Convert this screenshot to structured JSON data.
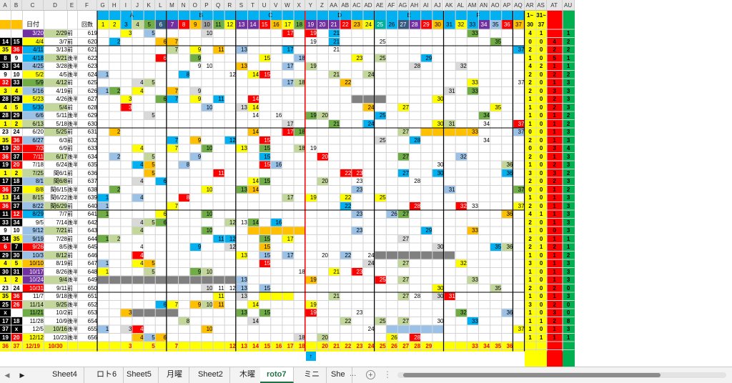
{
  "colors": {
    "red": "#ff0000",
    "yellow": "#ffff00",
    "orange": "#ffc000",
    "green": "#70ad47",
    "lblue": "#9bc2e6",
    "blue": "#00b0f0",
    "gray": "#808080",
    "lgray": "#d9d9d9",
    "purple": "#7030a0",
    "olive": "#c4d79b",
    "black": "#000000",
    "teal": "#00b0a0",
    "darkgray": "#555555",
    "pink": "#ff99cc",
    "lpurple": "#b4a7d6"
  },
  "column_letters": [
    "A",
    "B",
    "C",
    "D",
    "E",
    "F",
    "G",
    "H",
    "I",
    "J",
    "K",
    "L",
    "M",
    "N",
    "O",
    "P",
    "Q",
    "R",
    "S",
    "T",
    "U",
    "V",
    "W",
    "X",
    "Y",
    "Z",
    "AA",
    "AB",
    "AC",
    "AD",
    "AE",
    "AF",
    "AG",
    "AH",
    "AI",
    "AJ",
    "AK",
    "AL",
    "AM",
    "AN",
    "AO",
    "AP",
    "AQ",
    "AR",
    "AS",
    "AT",
    "AU"
  ],
  "group_labels": [
    "A",
    "B",
    "C",
    "D",
    "E",
    "F"
  ],
  "header": {
    "date_label": "日付",
    "first_date": "3/20",
    "first_prev": "2/29",
    "first_half": "前",
    "round_label": "回数",
    "num_headers": [
      "1",
      "2",
      "3",
      "4",
      "5",
      "6",
      "7",
      "8",
      "9",
      "10",
      "11",
      "12",
      "13",
      "14",
      "15",
      "16",
      "17",
      "18",
      "19",
      "20",
      "21",
      "22",
      "23",
      "24",
      "25",
      "26",
      "27",
      "28",
      "29",
      "30",
      "31",
      "32",
      "33",
      "34",
      "35",
      "36",
      "37"
    ],
    "right_heads": [
      "1~",
      "31~"
    ],
    "right_vals": [
      "30",
      "37"
    ]
  },
  "rows": [
    {
      "a": "",
      "b": "",
      "c": "3/20",
      "d": "2/29",
      "e": "前",
      "f": "619",
      "ar": "4",
      "as": "1",
      "at": "",
      "au": "1"
    },
    {
      "a": "14",
      "b": "15",
      "c": "4/4",
      "d": "3/7",
      "e": "前",
      "f": "620",
      "ar": "0",
      "as": "0",
      "at": "4",
      "au": "2"
    },
    {
      "a": "35",
      "b": "36",
      "c": "4/11",
      "d": "3/13",
      "e": "前",
      "f": "621",
      "ar": "2",
      "as": "0",
      "at": "2",
      "au": "2"
    },
    {
      "a": "8",
      "b": "9",
      "c": "4/18",
      "d": "3/21",
      "e": "後半",
      "f": "622",
      "ar": "1",
      "as": "0",
      "at": "5",
      "au": "1"
    },
    {
      "a": "33",
      "b": "34",
      "c": "4/25",
      "d": "3/28",
      "e": "後半",
      "f": "623",
      "ar": "4",
      "as": "2",
      "at": "1",
      "au": "1"
    },
    {
      "a": "9",
      "b": "10",
      "c": "5/2",
      "d": "4/5",
      "e": "後半",
      "f": "624",
      "ar": "2",
      "as": "0",
      "at": "2",
      "au": "2"
    },
    {
      "a": "32",
      "b": "33",
      "c": "5/9",
      "d": "4/12",
      "e": "前",
      "f": "625",
      "ar": "2",
      "as": "0",
      "at": "1",
      "au": "3"
    },
    {
      "a": "3",
      "b": "4",
      "c": "5/16",
      "d": "4/19",
      "e": "前",
      "f": "626",
      "ar": "2",
      "as": "0",
      "at": "3",
      "au": "3"
    },
    {
      "a": "28",
      "b": "29",
      "c": "5/23",
      "d": "4/26",
      "e": "後半",
      "f": "627",
      "ar": "1",
      "as": "0",
      "at": "2",
      "au": "3"
    },
    {
      "a": "4",
      "b": "5",
      "c": "5/30",
      "d": "5/4",
      "e": "前",
      "f": "628",
      "ar": "1",
      "as": "0",
      "at": "2",
      "au": "3"
    },
    {
      "a": "28",
      "b": "29",
      "c": "6/6",
      "d": "5/11",
      "e": "後半",
      "f": "629",
      "ar": "1",
      "as": "0",
      "at": "1",
      "au": "2"
    },
    {
      "a": "1",
      "b": "2",
      "c": "6/13",
      "d": "5/18",
      "e": "後半",
      "f": "630",
      "ar": "1",
      "as": "0",
      "at": "1",
      "au": "2"
    },
    {
      "a": "23",
      "b": "24",
      "c": "6/20",
      "d": "5/25",
      "e": "前",
      "f": "631",
      "ar": "0",
      "as": "0",
      "at": "1",
      "au": "3"
    },
    {
      "a": "35",
      "b": "36",
      "c": "6/27",
      "d": "6/3",
      "e": "前",
      "f": "632",
      "ar": "2",
      "as": "0",
      "at": "1",
      "au": "3"
    },
    {
      "a": "19",
      "b": "20",
      "c": "7/3",
      "d": "6/9",
      "e": "前",
      "f": "633",
      "ar": "0",
      "as": "0",
      "at": "3",
      "au": "4"
    },
    {
      "a": "36",
      "b": "37",
      "c": "7/11",
      "d": "6/17",
      "e": "後半",
      "f": "634",
      "ar": "2",
      "as": "0",
      "at": "1",
      "au": "3"
    },
    {
      "a": "19",
      "b": "20",
      "c": "7/18",
      "d": "6/24",
      "e": "後半",
      "f": "635",
      "ar": "1",
      "as": "0",
      "at": "2",
      "au": "3"
    },
    {
      "a": "1",
      "b": "2",
      "c": "7/25",
      "d": "閏6/1",
      "e": "前",
      "f": "636",
      "ar": "3",
      "as": "0",
      "at": "3",
      "au": "2"
    },
    {
      "a": "17",
      "b": "18",
      "c": "8/1",
      "d": "閏6/8",
      "e": "前",
      "f": "637",
      "ar": "2",
      "as": "0",
      "at": "2",
      "au": "3"
    },
    {
      "a": "36",
      "b": "37",
      "c": "8/8",
      "d": "閏6/15",
      "e": "後半",
      "f": "638",
      "ar": "0",
      "as": "0",
      "at": "1",
      "au": "2"
    },
    {
      "a": "13",
      "b": "14",
      "c": "8/15",
      "d": "閏6/22",
      "e": "後半",
      "f": "639",
      "ar": "1",
      "as": "0",
      "at": "1",
      "au": "3"
    },
    {
      "a": "36",
      "b": "37",
      "c": "8/22",
      "d": "閏6/29",
      "e": "前",
      "f": "640",
      "ar": "2",
      "as": "0",
      "at": "1",
      "au": "3"
    },
    {
      "a": "11",
      "b": "12",
      "c": "8/29",
      "d": "7/7",
      "e": "前",
      "f": "641",
      "ar": "4",
      "as": "1",
      "at": "1",
      "au": "3"
    },
    {
      "a": "33",
      "b": "34",
      "c": "9/5",
      "d": "7/14",
      "e": "後半",
      "f": "642",
      "ar": "2",
      "as": "0",
      "at": "1",
      "au": "3"
    },
    {
      "a": "9",
      "b": "10",
      "c": "9/12",
      "d": "7/21",
      "e": "前",
      "f": "643",
      "ar": "1",
      "as": "0",
      "at": "0",
      "au": "3"
    },
    {
      "a": "34",
      "b": "35",
      "c": "9/19",
      "d": "7/28",
      "e": "前",
      "f": "644",
      "ar": "2",
      "as": "0",
      "at": "1",
      "au": "1"
    },
    {
      "a": "6",
      "b": "7",
      "c": "9/26",
      "d": "8/5",
      "e": "後半",
      "f": "645",
      "ar": "2",
      "as": "1",
      "at": "2",
      "au": "1"
    },
    {
      "a": "29",
      "b": "30",
      "c": "10/3",
      "d": "8/12",
      "e": "前",
      "f": "646",
      "ar": "1",
      "as": "0",
      "at": "1",
      "au": "2"
    },
    {
      "a": "4",
      "b": "5",
      "c": "10/10",
      "d": "8/19",
      "e": "前",
      "f": "647",
      "ar": "3",
      "as": "0",
      "at": "1",
      "au": "3"
    },
    {
      "a": "30",
      "b": "31",
      "c": "10/17",
      "d": "8/26",
      "e": "後半",
      "f": "648",
      "ar": "1",
      "as": "0",
      "at": "1",
      "au": "3"
    },
    {
      "a": "1",
      "b": "2",
      "c": "10/24",
      "d": "9/4",
      "e": "後半",
      "f": "649",
      "ar": "1",
      "as": "0",
      "at": "1",
      "au": "3"
    },
    {
      "a": "23",
      "b": "24",
      "c": "10/31",
      "d": "9/11",
      "e": "前",
      "f": "650",
      "ar": "2",
      "as": "0",
      "at": "2",
      "au": "0"
    },
    {
      "a": "35",
      "b": "36",
      "c": "11/7",
      "d": "9/18",
      "e": "後半",
      "f": "651",
      "ar": "1",
      "as": "0",
      "at": "1",
      "au": "3"
    },
    {
      "a": "25",
      "b": "26",
      "c": "11/14",
      "d": "9/25",
      "e": "後半",
      "f": "652",
      "ar": "3",
      "as": "0",
      "at": "2",
      "au": "0"
    },
    {
      "a": "x",
      "b": "",
      "c": "11/21",
      "d": "10/2",
      "e": "前",
      "f": "653",
      "ar": "1",
      "as": "0",
      "at": "3",
      "au": "0"
    },
    {
      "a": "17",
      "b": "18",
      "c": "11/28",
      "d": "10/9",
      "e": "後半",
      "f": "654",
      "ar": "1",
      "as": "1",
      "at": "2",
      "au": "8"
    },
    {
      "a": "37",
      "b": "x",
      "c": "12/5",
      "d": "10/16",
      "e": "後半",
      "f": "655",
      "ar": "1",
      "as": "0",
      "at": "1",
      "au": "3"
    },
    {
      "a": "19",
      "b": "20",
      "c": "12/12",
      "d": "10/23",
      "e": "後半",
      "f": "656",
      "ar": "1",
      "as": "1",
      "at": "1",
      "au": "1"
    }
  ],
  "bottom": {
    "a": "36",
    "b": "37",
    "c": "12/19",
    "d": "10/30"
  },
  "tabs": [
    "Sheet4",
    "ロト6",
    "Sheet5",
    "月曜",
    "Sheet2",
    "木曜",
    "roto7",
    "ミニ",
    "She"
  ],
  "active_tab": "roto7",
  "tab_ellipsis": "...",
  "add_sheet": "+"
}
